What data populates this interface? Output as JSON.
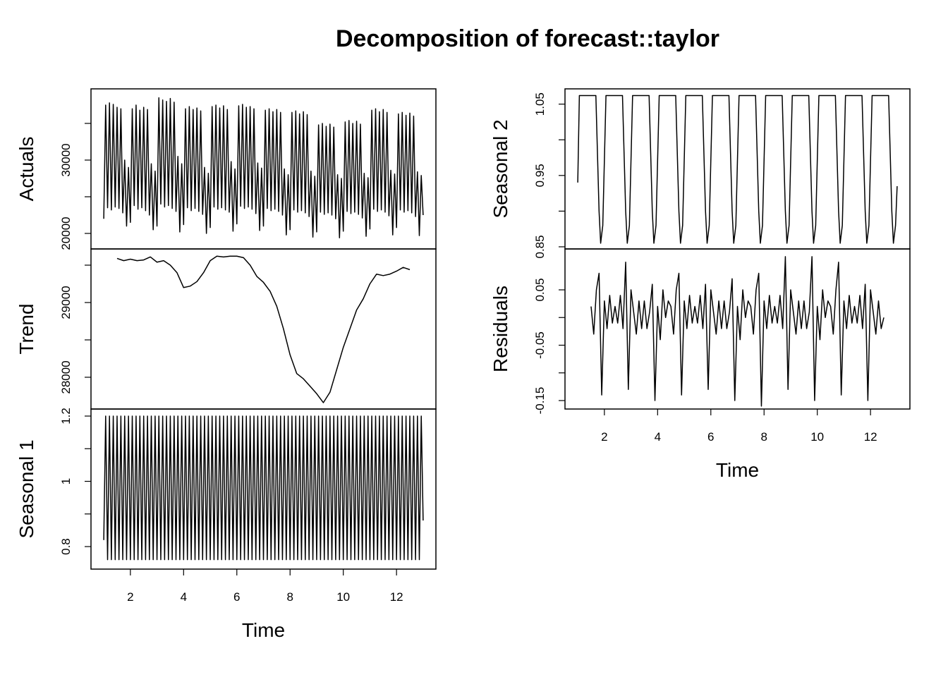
{
  "title": "Decomposition of forecast::taylor",
  "chart_data": [
    {
      "type": "line",
      "ylabel": "Actuals",
      "color": "#000000",
      "xlim": [
        0.52,
        13.48
      ],
      "ylim": [
        17885,
        39710
      ],
      "yticks": [
        20000,
        30000
      ],
      "yticks_minor": [
        25000,
        35000
      ],
      "x": [
        1.0,
        1.071,
        1.143,
        1.214,
        1.286,
        1.357,
        1.429,
        1.5,
        1.571,
        1.643,
        1.714,
        1.786,
        1.857,
        1.929,
        2.0,
        2.071,
        2.143,
        2.214,
        2.286,
        2.357,
        2.429,
        2.5,
        2.571,
        2.643,
        2.714,
        2.786,
        2.857,
        2.929,
        3.0,
        3.071,
        3.143,
        3.214,
        3.286,
        3.357,
        3.429,
        3.5,
        3.571,
        3.643,
        3.714,
        3.786,
        3.857,
        3.929,
        4.0,
        4.071,
        4.143,
        4.214,
        4.286,
        4.357,
        4.429,
        4.5,
        4.571,
        4.643,
        4.714,
        4.786,
        4.857,
        4.929,
        5.0,
        5.071,
        5.143,
        5.214,
        5.286,
        5.357,
        5.429,
        5.5,
        5.571,
        5.643,
        5.714,
        5.786,
        5.857,
        5.929,
        6.0,
        6.071,
        6.143,
        6.214,
        6.286,
        6.357,
        6.429,
        6.5,
        6.571,
        6.643,
        6.714,
        6.786,
        6.857,
        6.929,
        7.0,
        7.071,
        7.143,
        7.214,
        7.286,
        7.357,
        7.429,
        7.5,
        7.571,
        7.643,
        7.714,
        7.786,
        7.857,
        7.929,
        8.0,
        8.071,
        8.143,
        8.214,
        8.286,
        8.357,
        8.429,
        8.5,
        8.571,
        8.643,
        8.714,
        8.786,
        8.857,
        8.929,
        9.0,
        9.071,
        9.143,
        9.214,
        9.286,
        9.357,
        9.429,
        9.5,
        9.571,
        9.643,
        9.714,
        9.786,
        9.857,
        9.929,
        10.0,
        10.071,
        10.143,
        10.214,
        10.286,
        10.357,
        10.429,
        10.5,
        10.571,
        10.643,
        10.714,
        10.786,
        10.857,
        10.929,
        11.0,
        11.071,
        11.143,
        11.214,
        11.286,
        11.357,
        11.429,
        11.5,
        11.571,
        11.643,
        11.714,
        11.786,
        11.857,
        11.929,
        12.0,
        12.071,
        12.143,
        12.214,
        12.286,
        12.357,
        12.429,
        12.5,
        12.571,
        12.643,
        12.714,
        12.786,
        12.857,
        12.929,
        13.0
      ],
      "values": [
        22000,
        37500,
        23500,
        37800,
        23200,
        37600,
        23600,
        37200,
        23400,
        37000,
        22800,
        30000,
        21000,
        29000,
        21500,
        37000,
        23800,
        37500,
        23300,
        36800,
        23500,
        37200,
        23100,
        36900,
        22500,
        29500,
        20500,
        28500,
        21000,
        38500,
        24000,
        38200,
        23600,
        38000,
        23800,
        38400,
        23400,
        37900,
        23000,
        30500,
        20200,
        29500,
        21200,
        37000,
        23500,
        37300,
        23100,
        36900,
        23400,
        37100,
        23000,
        36700,
        22600,
        29000,
        20000,
        28200,
        20800,
        37300,
        23600,
        37500,
        23300,
        37100,
        23500,
        37400,
        23200,
        36900,
        22900,
        29800,
        20300,
        28800,
        21300,
        37400,
        23700,
        37600,
        23400,
        37200,
        23600,
        37300,
        23300,
        37000,
        22700,
        29600,
        20400,
        28900,
        21000,
        36800,
        23400,
        37000,
        23100,
        36600,
        23300,
        36900,
        23000,
        36500,
        22500,
        28800,
        19800,
        28000,
        20500,
        36500,
        23200,
        36700,
        22900,
        36300,
        23100,
        36600,
        22800,
        36200,
        22300,
        28500,
        19500,
        27800,
        20200,
        34800,
        22900,
        35000,
        22600,
        34600,
        22800,
        34900,
        22500,
        34500,
        22000,
        28000,
        19400,
        27500,
        20300,
        35200,
        23000,
        35400,
        22700,
        35000,
        22900,
        35300,
        22600,
        34900,
        22100,
        28200,
        19600,
        27600,
        20600,
        36800,
        23300,
        37000,
        23000,
        36600,
        23200,
        36900,
        22900,
        36500,
        22400,
        28600,
        19800,
        28100,
        20800,
        36300,
        23200,
        36500,
        22900,
        36100,
        23100,
        36400,
        22800,
        36000,
        22300,
        28400,
        19700,
        27900,
        22500
      ]
    },
    {
      "type": "line",
      "ylabel": "Trend",
      "color": "#000000",
      "xlim": [
        0.52,
        13.48
      ],
      "ylim": [
        27575,
        29717
      ],
      "yticks": [
        28000,
        29000
      ],
      "yticks_minor": [
        28500,
        29500
      ],
      "x": [
        1.5,
        1.75,
        2.0,
        2.25,
        2.5,
        2.75,
        3.0,
        3.25,
        3.5,
        3.75,
        4.0,
        4.25,
        4.5,
        4.75,
        5.0,
        5.25,
        5.5,
        5.75,
        6.0,
        6.25,
        6.5,
        6.75,
        7.0,
        7.25,
        7.5,
        7.75,
        8.0,
        8.25,
        8.5,
        8.75,
        9.0,
        9.25,
        9.5,
        9.75,
        10.0,
        10.25,
        10.5,
        10.75,
        11.0,
        11.25,
        11.5,
        11.75,
        12.0,
        12.25,
        12.5
      ],
      "values": [
        29590,
        29560,
        29580,
        29560,
        29570,
        29610,
        29540,
        29560,
        29500,
        29400,
        29200,
        29220,
        29280,
        29400,
        29560,
        29620,
        29610,
        29620,
        29620,
        29600,
        29500,
        29350,
        29270,
        29150,
        28950,
        28650,
        28300,
        28050,
        27980,
        27880,
        27780,
        27660,
        27800,
        28100,
        28400,
        28650,
        28900,
        29050,
        29250,
        29380,
        29360,
        29380,
        29420,
        29470,
        29440
      ]
    },
    {
      "type": "line",
      "ylabel": "Seasonal 1",
      "xlabel": "Time",
      "color": "#000000",
      "xlim": [
        0.52,
        13.48
      ],
      "ylim": [
        0.731,
        1.2216
      ],
      "yticks": [
        0.8,
        1.0,
        1.2
      ],
      "yticks_minor": [
        0.9,
        1.1
      ],
      "xticks": [
        2,
        4,
        6,
        8,
        10,
        12
      ],
      "x": [
        1.0,
        1.071,
        1.143,
        1.214,
        1.286,
        1.357,
        1.429,
        1.5,
        1.571,
        1.643,
        1.714,
        1.786,
        1.857,
        1.929,
        2.0,
        2.071,
        2.143,
        2.214,
        2.286,
        2.357,
        2.429,
        2.5,
        2.571,
        2.643,
        2.714,
        2.786,
        2.857,
        2.929,
        3.0,
        3.071,
        3.143,
        3.214,
        3.286,
        3.357,
        3.429,
        3.5,
        3.571,
        3.643,
        3.714,
        3.786,
        3.857,
        3.929,
        4.0,
        4.071,
        4.143,
        4.214,
        4.286,
        4.357,
        4.429,
        4.5,
        4.571,
        4.643,
        4.714,
        4.786,
        4.857,
        4.929,
        5.0,
        5.071,
        5.143,
        5.214,
        5.286,
        5.357,
        5.429,
        5.5,
        5.571,
        5.643,
        5.714,
        5.786,
        5.857,
        5.929,
        6.0,
        6.071,
        6.143,
        6.214,
        6.286,
        6.357,
        6.429,
        6.5,
        6.571,
        6.643,
        6.714,
        6.786,
        6.857,
        6.929,
        7.0,
        7.071,
        7.143,
        7.214,
        7.286,
        7.357,
        7.429,
        7.5,
        7.571,
        7.643,
        7.714,
        7.786,
        7.857,
        7.929,
        8.0,
        8.071,
        8.143,
        8.214,
        8.286,
        8.357,
        8.429,
        8.5,
        8.571,
        8.643,
        8.714,
        8.786,
        8.857,
        8.929,
        9.0,
        9.071,
        9.143,
        9.214,
        9.286,
        9.357,
        9.429,
        9.5,
        9.571,
        9.643,
        9.714,
        9.786,
        9.857,
        9.929,
        10.0,
        10.071,
        10.143,
        10.214,
        10.286,
        10.357,
        10.429,
        10.5,
        10.571,
        10.643,
        10.714,
        10.786,
        10.857,
        10.929,
        11.0,
        11.071,
        11.143,
        11.214,
        11.286,
        11.357,
        11.429,
        11.5,
        11.571,
        11.643,
        11.714,
        11.786,
        11.857,
        11.929,
        12.0,
        12.071,
        12.143,
        12.214,
        12.286,
        12.357,
        12.429,
        12.5,
        12.571,
        12.643,
        12.714,
        12.786,
        12.857,
        12.929,
        13.0
      ],
      "values": [
        0.82,
        1.2,
        0.76,
        1.2,
        0.76,
        1.2,
        0.76,
        1.2,
        0.76,
        1.2,
        0.76,
        1.2,
        0.76,
        1.2,
        0.76,
        1.2,
        0.76,
        1.2,
        0.76,
        1.2,
        0.76,
        1.2,
        0.76,
        1.2,
        0.76,
        1.2,
        0.76,
        1.2,
        0.76,
        1.2,
        0.76,
        1.2,
        0.76,
        1.2,
        0.76,
        1.2,
        0.76,
        1.2,
        0.76,
        1.2,
        0.76,
        1.2,
        0.76,
        1.2,
        0.76,
        1.2,
        0.76,
        1.2,
        0.76,
        1.2,
        0.76,
        1.2,
        0.76,
        1.2,
        0.76,
        1.2,
        0.76,
        1.2,
        0.76,
        1.2,
        0.76,
        1.2,
        0.76,
        1.2,
        0.76,
        1.2,
        0.76,
        1.2,
        0.76,
        1.2,
        0.76,
        1.2,
        0.76,
        1.2,
        0.76,
        1.2,
        0.76,
        1.2,
        0.76,
        1.2,
        0.76,
        1.2,
        0.76,
        1.2,
        0.76,
        1.2,
        0.76,
        1.2,
        0.76,
        1.2,
        0.76,
        1.2,
        0.76,
        1.2,
        0.76,
        1.2,
        0.76,
        1.2,
        0.76,
        1.2,
        0.76,
        1.2,
        0.76,
        1.2,
        0.76,
        1.2,
        0.76,
        1.2,
        0.76,
        1.2,
        0.76,
        1.2,
        0.76,
        1.2,
        0.76,
        1.2,
        0.76,
        1.2,
        0.76,
        1.2,
        0.76,
        1.2,
        0.76,
        1.2,
        0.76,
        1.2,
        0.76,
        1.2,
        0.76,
        1.2,
        0.76,
        1.2,
        0.76,
        1.2,
        0.76,
        1.2,
        0.76,
        1.2,
        0.76,
        1.2,
        0.76,
        1.2,
        0.76,
        1.2,
        0.76,
        1.2,
        0.76,
        1.2,
        0.76,
        1.2,
        0.76,
        1.2,
        0.76,
        1.2,
        0.76,
        1.2,
        0.76,
        1.2,
        0.76,
        1.2,
        0.76,
        1.2,
        0.76,
        1.2,
        0.76,
        1.2,
        0.76,
        1.2,
        0.88
      ]
    },
    {
      "type": "line",
      "ylabel": "Seasonal 2",
      "color": "#000000",
      "xlim": [
        0.52,
        13.48
      ],
      "ylim": [
        0.847,
        1.0714
      ],
      "yticks": [
        0.85,
        0.95,
        1.05
      ],
      "yticks_minor": [
        0.9,
        1.0
      ],
      "x": [
        1.0,
        1.06,
        1.68,
        1.8,
        1.86,
        1.94,
        2.06,
        2.68,
        2.8,
        2.86,
        2.94,
        3.06,
        3.68,
        3.8,
        3.86,
        3.94,
        4.06,
        4.68,
        4.8,
        4.86,
        4.94,
        5.06,
        5.68,
        5.8,
        5.86,
        5.94,
        6.06,
        6.68,
        6.8,
        6.86,
        6.94,
        7.06,
        7.68,
        7.8,
        7.86,
        7.94,
        8.06,
        8.68,
        8.8,
        8.86,
        8.94,
        9.06,
        9.68,
        9.8,
        9.86,
        9.94,
        10.06,
        10.68,
        10.8,
        10.86,
        10.94,
        11.06,
        11.68,
        11.8,
        11.86,
        11.94,
        12.06,
        12.68,
        12.8,
        12.86,
        12.94,
        13.0
      ],
      "values": [
        0.94,
        1.062,
        1.062,
        0.9,
        0.855,
        0.88,
        1.062,
        1.062,
        0.9,
        0.855,
        0.88,
        1.062,
        1.062,
        0.9,
        0.855,
        0.88,
        1.062,
        1.062,
        0.9,
        0.855,
        0.88,
        1.062,
        1.062,
        0.9,
        0.855,
        0.88,
        1.062,
        1.062,
        0.9,
        0.855,
        0.88,
        1.062,
        1.062,
        0.9,
        0.855,
        0.88,
        1.062,
        1.062,
        0.9,
        0.855,
        0.88,
        1.062,
        1.062,
        0.9,
        0.855,
        0.88,
        1.062,
        1.062,
        0.9,
        0.855,
        0.88,
        1.062,
        1.062,
        0.9,
        0.855,
        0.88,
        1.062,
        1.062,
        0.9,
        0.855,
        0.88,
        0.935
      ]
    },
    {
      "type": "line",
      "ylabel": "Residuals",
      "xlabel": "Time",
      "color": "#000000",
      "xlim": [
        0.52,
        13.48
      ],
      "ylim": [
        -0.1653,
        0.1239
      ],
      "yticks": [
        -0.15,
        -0.05,
        0.05
      ],
      "yticks_minor": [
        -0.1,
        0.0
      ],
      "xticks": [
        2,
        4,
        6,
        8,
        10,
        12
      ],
      "x": [
        1.5,
        1.6,
        1.7,
        1.8,
        1.9,
        2.0,
        2.1,
        2.2,
        2.3,
        2.4,
        2.5,
        2.6,
        2.7,
        2.8,
        2.9,
        3.0,
        3.1,
        3.2,
        3.3,
        3.4,
        3.5,
        3.6,
        3.7,
        3.8,
        3.9,
        4.0,
        4.1,
        4.2,
        4.3,
        4.4,
        4.5,
        4.6,
        4.7,
        4.8,
        4.9,
        5.0,
        5.1,
        5.2,
        5.3,
        5.4,
        5.5,
        5.6,
        5.7,
        5.8,
        5.9,
        6.0,
        6.1,
        6.2,
        6.3,
        6.4,
        6.5,
        6.6,
        6.7,
        6.8,
        6.9,
        7.0,
        7.1,
        7.2,
        7.3,
        7.4,
        7.5,
        7.6,
        7.7,
        7.8,
        7.9,
        8.0,
        8.1,
        8.2,
        8.3,
        8.4,
        8.5,
        8.6,
        8.7,
        8.8,
        8.9,
        9.0,
        9.1,
        9.2,
        9.3,
        9.4,
        9.5,
        9.6,
        9.7,
        9.8,
        9.9,
        10.0,
        10.1,
        10.2,
        10.3,
        10.4,
        10.5,
        10.6,
        10.7,
        10.8,
        10.9,
        11.0,
        11.1,
        11.2,
        11.3,
        11.4,
        11.5,
        11.6,
        11.7,
        11.8,
        11.9,
        12.0,
        12.1,
        12.2,
        12.3,
        12.4,
        12.5
      ],
      "values": [
        0.02,
        -0.03,
        0.05,
        0.08,
        -0.14,
        0.03,
        -0.02,
        0.04,
        -0.01,
        0.02,
        -0.01,
        0.04,
        -0.02,
        0.1,
        -0.13,
        0.05,
        0.01,
        -0.03,
        0.03,
        -0.02,
        0.03,
        -0.02,
        0.01,
        0.06,
        -0.15,
        0.02,
        -0.04,
        0.05,
        0.0,
        0.03,
        0.02,
        -0.03,
        0.05,
        0.08,
        -0.14,
        0.03,
        -0.02,
        0.04,
        -0.01,
        0.02,
        -0.01,
        0.04,
        -0.02,
        0.06,
        -0.13,
        0.05,
        0.01,
        -0.03,
        0.03,
        -0.02,
        0.03,
        -0.02,
        0.01,
        0.07,
        -0.15,
        0.02,
        -0.04,
        0.05,
        0.0,
        0.03,
        0.02,
        -0.03,
        0.05,
        0.08,
        -0.16,
        0.03,
        -0.02,
        0.04,
        -0.01,
        0.02,
        -0.01,
        0.04,
        -0.02,
        0.11,
        -0.13,
        0.05,
        0.01,
        -0.03,
        0.03,
        -0.02,
        0.03,
        -0.02,
        0.01,
        0.11,
        -0.15,
        0.02,
        -0.04,
        0.05,
        0.0,
        0.03,
        0.02,
        -0.03,
        0.05,
        0.1,
        -0.14,
        0.03,
        -0.02,
        0.04,
        -0.01,
        0.02,
        -0.01,
        0.04,
        -0.02,
        0.06,
        -0.15,
        0.05,
        0.01,
        -0.03,
        0.03,
        -0.02,
        0.0
      ]
    }
  ]
}
